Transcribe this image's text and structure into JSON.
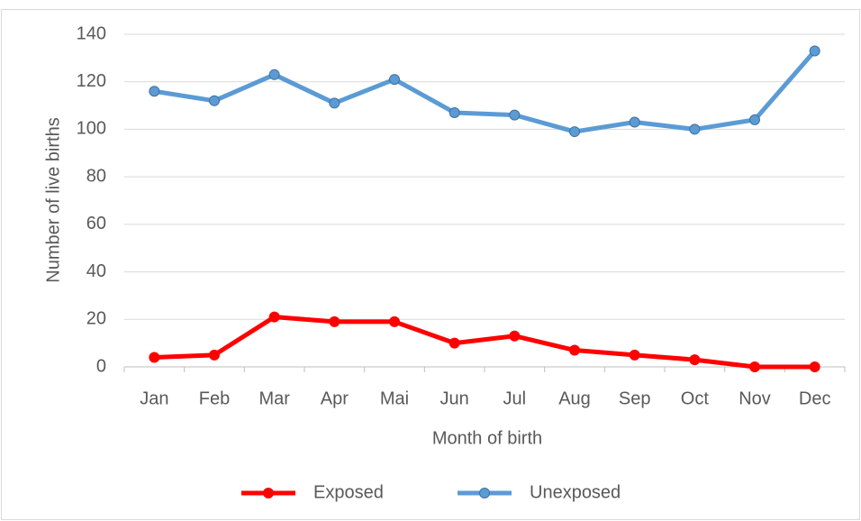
{
  "chart_data": {
    "type": "line",
    "categories": [
      "Jan",
      "Feb",
      "Mar",
      "Apr",
      "Mai",
      "Jun",
      "Jul",
      "Aug",
      "Sep",
      "Oct",
      "Nov",
      "Dec"
    ],
    "series": [
      {
        "name": "Exposed",
        "color": "#ff0000",
        "values": [
          4,
          5,
          21,
          19,
          19,
          10,
          13,
          7,
          5,
          3,
          0,
          0
        ]
      },
      {
        "name": "Unexposed",
        "color": "#5b9bd5",
        "values": [
          116,
          112,
          123,
          111,
          121,
          107,
          106,
          99,
          103,
          100,
          104,
          133
        ]
      }
    ],
    "x_label": "Month of birth",
    "y_label": "Number of live births",
    "ylim": [
      0,
      140
    ],
    "yticks": [
      0,
      20,
      40,
      60,
      80,
      100,
      120,
      140
    ],
    "grid": true,
    "legend": "bottom"
  }
}
